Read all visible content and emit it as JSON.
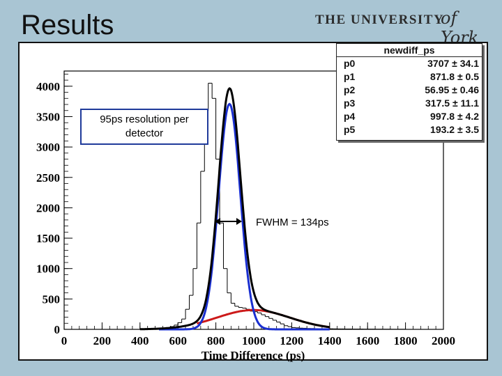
{
  "slide": {
    "title": "Results"
  },
  "logo": {
    "caps": "THE UNIVERSITY",
    "script": "of York"
  },
  "stats_box": {
    "title": "newdiff_ps",
    "params": [
      {
        "name": "p0",
        "value": "3707 ± 34.1"
      },
      {
        "name": "p1",
        "value": "871.8 ± 0.5"
      },
      {
        "name": "p2",
        "value": "56.95 ± 0.46"
      },
      {
        "name": "p3",
        "value": "317.5 ± 11.1"
      },
      {
        "name": "p4",
        "value": "997.8 ± 4.2"
      },
      {
        "name": "p5",
        "value": "193.2 ± 3.5"
      }
    ]
  },
  "annotations": {
    "resolution": "95ps resolution per detector",
    "fwhm": "FWHM = 134ps"
  },
  "colors": {
    "histogram": "#000000",
    "total_fit": "#000000",
    "narrow_gauss": "#1a2fd0",
    "wide_gauss": "#cc1a1a"
  },
  "chart_data": {
    "type": "line",
    "title": "newdiff_ps",
    "xlabel": "Time Difference (ps)",
    "ylabel": "",
    "xlim": [
      0,
      2000
    ],
    "ylim": [
      0,
      4250
    ],
    "xticks": [
      0,
      200,
      400,
      600,
      800,
      1000,
      1200,
      1400,
      1600,
      1800,
      2000
    ],
    "yticks": [
      0,
      500,
      1000,
      1500,
      2000,
      2500,
      3000,
      3500,
      4000
    ],
    "series": [
      {
        "name": "narrow gaussian",
        "color": "#1a2fd0",
        "amplitude": 3707,
        "mean": 871.8,
        "sigma": 56.95,
        "x_range": [
          500,
          1400
        ]
      },
      {
        "name": "wide gaussian",
        "color": "#cc1a1a",
        "amplitude": 317.5,
        "mean": 997.8,
        "sigma": 193.2,
        "x_range": [
          700,
          1400
        ]
      },
      {
        "name": "total fit",
        "color": "#000000",
        "x_range": [
          400,
          1400
        ]
      }
    ],
    "histogram": {
      "bin_start": 400,
      "bin_width": 20,
      "counts": [
        3,
        5,
        6,
        8,
        10,
        14,
        20,
        30,
        45,
        70,
        110,
        170,
        330,
        560,
        1000,
        1750,
        2600,
        3600,
        4050,
        3800,
        2800,
        1750,
        1000,
        600,
        430,
        380,
        360,
        350,
        330,
        300,
        290,
        270,
        240,
        210,
        180,
        150,
        120,
        90,
        60,
        45,
        30,
        25,
        20,
        18,
        15,
        14,
        12,
        11,
        10,
        10,
        9,
        8,
        7,
        7,
        6,
        6,
        5,
        5,
        5,
        4,
        4,
        4,
        3,
        3,
        3,
        3,
        2,
        2,
        2,
        2
      ]
    }
  }
}
